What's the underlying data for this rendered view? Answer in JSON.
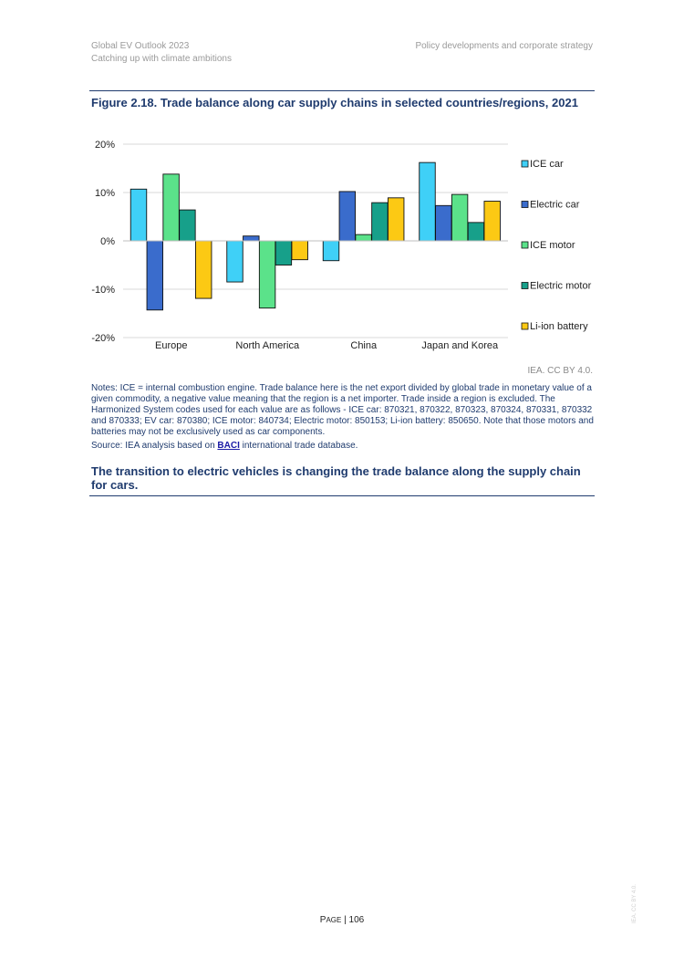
{
  "header": {
    "left_line1": "Global EV Outlook 2023",
    "left_line2": "Catching up with climate ambitions",
    "right": "Policy developments and corporate strategy"
  },
  "figure": {
    "title": "Figure 2.18.  Trade balance along car supply chains in selected countries/regions, 2021",
    "credit": "IEA. CC BY 4.0."
  },
  "chart_data": {
    "type": "bar",
    "title": "",
    "xlabel": "",
    "ylabel": "",
    "ylim": [
      -20,
      20
    ],
    "yticks": [
      20,
      10,
      0,
      -10,
      -20
    ],
    "ytick_labels": [
      "20%",
      "10%",
      "0%",
      "-10%",
      "-20%"
    ],
    "grid": true,
    "legend_position": "right",
    "categories": [
      "Europe",
      "North America",
      "China",
      "Japan and Korea"
    ],
    "series": [
      {
        "name": "ICE car",
        "color": "#3fd0f7",
        "values": [
          10.7,
          -8.5,
          -4.1,
          16.2
        ]
      },
      {
        "name": "Electric car",
        "color": "#3a6ccc",
        "values": [
          -14.3,
          1.0,
          10.2,
          7.3
        ]
      },
      {
        "name": "ICE motor",
        "color": "#5be28a",
        "values": [
          13.8,
          -13.9,
          1.3,
          9.6
        ]
      },
      {
        "name": "Electric motor",
        "color": "#17a08a",
        "values": [
          6.4,
          -5.0,
          7.9,
          3.8
        ]
      },
      {
        "name": "Li-ion battery",
        "color": "#fcc914",
        "values": [
          -11.9,
          -3.9,
          8.9,
          8.2
        ]
      }
    ]
  },
  "notes": {
    "text": "Notes: ICE = internal combustion engine. Trade balance here is the net export divided by global trade in monetary value of a given commodity, a negative value meaning that the region is a net importer. Trade inside a region is excluded. The Harmonized System codes used for each value are as follows - ICE car: 870321, 870322, 870323, 870324, 870331, 870332 and 870333; EV car: 870380; ICE motor: 840734; Electric motor: 850153; Li-ion battery: 850650. Note that those motors and batteries may not be exclusively used as car components.",
    "source_prefix": "Source: IEA analysis based on ",
    "source_link": "BACI",
    "source_suffix": " international trade database."
  },
  "takeaway": "The transition to electric vehicles is changing the trade balance along the supply chain for cars.",
  "footer": {
    "page_label_first": "P",
    "page_label_rest": "AGE",
    "page_number": "| 106",
    "side_mark": "IEA. CC BY 4.0."
  }
}
